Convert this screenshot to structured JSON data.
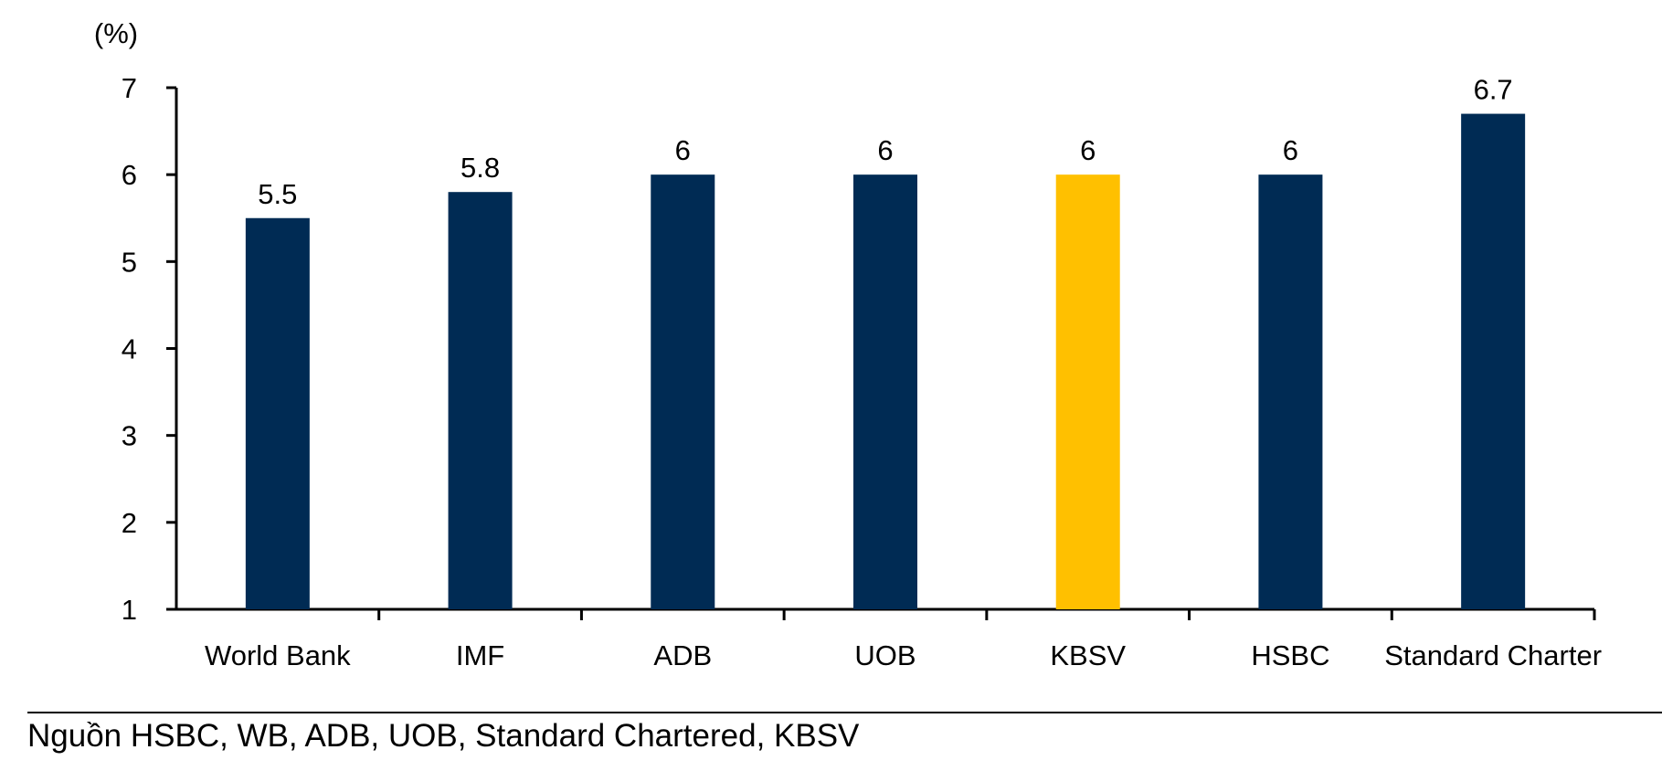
{
  "chart_data": {
    "type": "bar",
    "unit_label": "(%)",
    "categories": [
      "World Bank",
      "IMF",
      "ADB",
      "UOB",
      "KBSV",
      "HSBC",
      "Standard Charter"
    ],
    "values": [
      5.5,
      5.8,
      6,
      6,
      6,
      6,
      6.7
    ],
    "value_labels": [
      "5.5",
      "5.8",
      "6",
      "6",
      "6",
      "6",
      "6.7"
    ],
    "bar_colors": [
      "#002B54",
      "#002B54",
      "#002B54",
      "#002B54",
      "#FFC000",
      "#002B54",
      "#002B54"
    ],
    "ylim": [
      1,
      7
    ],
    "yticks": [
      1,
      2,
      3,
      4,
      5,
      6,
      7
    ],
    "grid": false,
    "legend": "none"
  },
  "source": "Nguồn HSBC, WB, ADB, UOB, Standard Chartered, KBSV"
}
